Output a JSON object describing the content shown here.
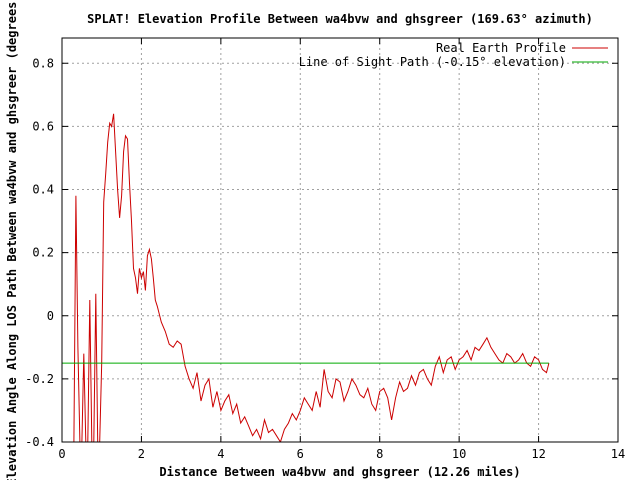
{
  "chart_data": {
    "type": "line",
    "title": "SPLAT! Elevation Profile Between wa4bvw and ghsgreer (169.63° azimuth)",
    "xlabel": "Distance Between wa4bvw and ghsgreer (12.26 miles)",
    "ylabel": "Elevation Angle Along LOS Path Between wa4bvw and ghsgreer (degrees)",
    "xlim": [
      0,
      14
    ],
    "ylim": [
      -0.4,
      0.88
    ],
    "xticks": [
      0,
      2,
      4,
      6,
      8,
      10,
      12,
      14
    ],
    "yticks": [
      -0.4,
      -0.2,
      0,
      0.2,
      0.4,
      0.6,
      0.8
    ],
    "xtick_labels": [
      "0",
      "2",
      "4",
      "6",
      "8",
      "10",
      "12",
      "14"
    ],
    "ytick_labels": [
      "-0.4",
      "-0.2",
      "0",
      "0.2",
      "0.4",
      "0.6",
      "0.8"
    ],
    "grid": true,
    "legend_position": "top-right",
    "series": [
      {
        "name": "Real Earth Profile",
        "color": "#cc0000",
        "x": [
          0.3,
          0.35,
          0.4,
          0.45,
          0.5,
          0.55,
          0.6,
          0.65,
          0.7,
          0.75,
          0.8,
          0.85,
          0.9,
          0.95,
          1.0,
          1.05,
          1.1,
          1.15,
          1.2,
          1.25,
          1.3,
          1.35,
          1.4,
          1.45,
          1.5,
          1.55,
          1.6,
          1.65,
          1.7,
          1.75,
          1.8,
          1.85,
          1.9,
          1.95,
          2.0,
          2.05,
          2.1,
          2.15,
          2.2,
          2.25,
          2.3,
          2.35,
          2.4,
          2.5,
          2.6,
          2.7,
          2.8,
          2.9,
          3.0,
          3.1,
          3.2,
          3.3,
          3.4,
          3.5,
          3.6,
          3.7,
          3.8,
          3.9,
          4.0,
          4.1,
          4.2,
          4.3,
          4.4,
          4.5,
          4.6,
          4.7,
          4.8,
          4.9,
          5.0,
          5.1,
          5.2,
          5.3,
          5.4,
          5.5,
          5.6,
          5.7,
          5.8,
          5.9,
          6.0,
          6.1,
          6.2,
          6.3,
          6.4,
          6.5,
          6.6,
          6.7,
          6.8,
          6.9,
          7.0,
          7.1,
          7.2,
          7.3,
          7.4,
          7.5,
          7.6,
          7.7,
          7.8,
          7.9,
          8.0,
          8.1,
          8.2,
          8.3,
          8.4,
          8.5,
          8.6,
          8.7,
          8.8,
          8.9,
          9.0,
          9.1,
          9.2,
          9.3,
          9.4,
          9.5,
          9.6,
          9.7,
          9.8,
          9.9,
          10.0,
          10.1,
          10.2,
          10.3,
          10.4,
          10.5,
          10.6,
          10.7,
          10.8,
          10.9,
          11.0,
          11.1,
          11.2,
          11.3,
          11.4,
          11.5,
          11.6,
          11.7,
          11.8,
          11.9,
          12.0,
          12.1,
          12.2,
          12.26
        ],
        "y": [
          -0.4,
          0.38,
          -0.1,
          -0.4,
          -0.4,
          -0.12,
          -0.4,
          -0.4,
          0.05,
          -0.4,
          -0.4,
          0.07,
          -0.4,
          -0.4,
          -0.15,
          0.36,
          0.45,
          0.55,
          0.61,
          0.6,
          0.64,
          0.52,
          0.4,
          0.31,
          0.38,
          0.52,
          0.57,
          0.56,
          0.42,
          0.3,
          0.15,
          0.12,
          0.07,
          0.15,
          0.12,
          0.14,
          0.08,
          0.19,
          0.21,
          0.18,
          0.12,
          0.05,
          0.03,
          -0.02,
          -0.05,
          -0.09,
          -0.1,
          -0.08,
          -0.09,
          -0.16,
          -0.2,
          -0.23,
          -0.18,
          -0.27,
          -0.22,
          -0.2,
          -0.29,
          -0.24,
          -0.3,
          -0.27,
          -0.25,
          -0.31,
          -0.28,
          -0.34,
          -0.32,
          -0.35,
          -0.38,
          -0.36,
          -0.39,
          -0.33,
          -0.37,
          -0.36,
          -0.38,
          -0.4,
          -0.36,
          -0.34,
          -0.31,
          -0.33,
          -0.3,
          -0.26,
          -0.28,
          -0.3,
          -0.24,
          -0.29,
          -0.17,
          -0.24,
          -0.26,
          -0.2,
          -0.21,
          -0.27,
          -0.24,
          -0.2,
          -0.22,
          -0.25,
          -0.26,
          -0.23,
          -0.28,
          -0.3,
          -0.24,
          -0.23,
          -0.26,
          -0.33,
          -0.26,
          -0.21,
          -0.24,
          -0.23,
          -0.19,
          -0.22,
          -0.18,
          -0.17,
          -0.2,
          -0.22,
          -0.16,
          -0.13,
          -0.18,
          -0.14,
          -0.13,
          -0.17,
          -0.14,
          -0.13,
          -0.11,
          -0.14,
          -0.1,
          -0.11,
          -0.09,
          -0.07,
          -0.1,
          -0.12,
          -0.14,
          -0.15,
          -0.12,
          -0.13,
          -0.15,
          -0.14,
          -0.12,
          -0.15,
          -0.16,
          -0.13,
          -0.14,
          -0.17,
          -0.18,
          -0.15
        ]
      },
      {
        "name": "Line of Sight Path (-0.15° elevation)",
        "color": "#00aa00",
        "x": [
          0,
          12.26
        ],
        "y": [
          -0.15,
          -0.15
        ]
      }
    ]
  }
}
